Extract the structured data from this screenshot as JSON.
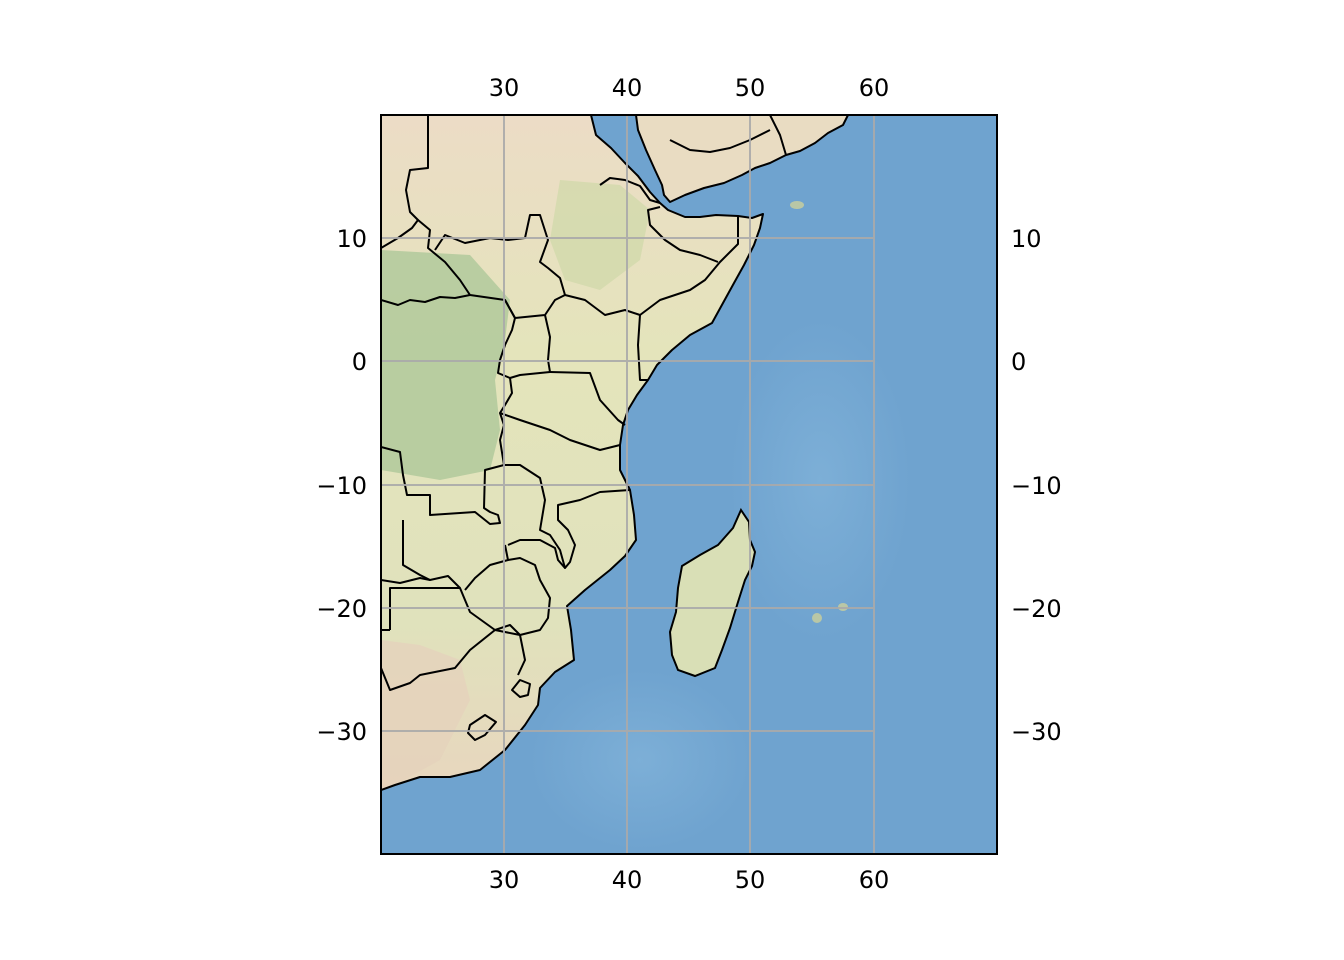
{
  "map": {
    "extent": {
      "lon_min": 20,
      "lon_max": 70,
      "lat_min": -40,
      "lat_max": 20
    },
    "projection": "PlateCarree",
    "background": "stock relief image",
    "features": [
      "land",
      "ocean",
      "country borders",
      "coastlines"
    ],
    "gridlines": {
      "visible": true,
      "color": "#aaaaaa",
      "lon": [
        30,
        40,
        50,
        60
      ],
      "lat": [
        10,
        0,
        -10,
        -20,
        -30
      ]
    },
    "x_tick_labels": {
      "lon30": "30",
      "lon40": "40",
      "lon50": "50",
      "lon60": "60"
    },
    "y_tick_labels": {
      "lat10": "10",
      "lat0": "0",
      "latm10": "−10",
      "latm20": "−20",
      "latm30": "−30"
    },
    "x_label_sides": [
      "top",
      "bottom"
    ],
    "y_label_sides": [
      "left",
      "right"
    ],
    "colors": {
      "ocean": "#6fa3cf",
      "ocean_deep": "#5f96c6",
      "ocean_shallow": "#86b7dc",
      "land_desert": "#e6dcc2",
      "land_savanna": "#e3e6bd",
      "land_forest": "#a8c797",
      "land_highland": "#cfd6ac",
      "border": "#000000"
    }
  }
}
